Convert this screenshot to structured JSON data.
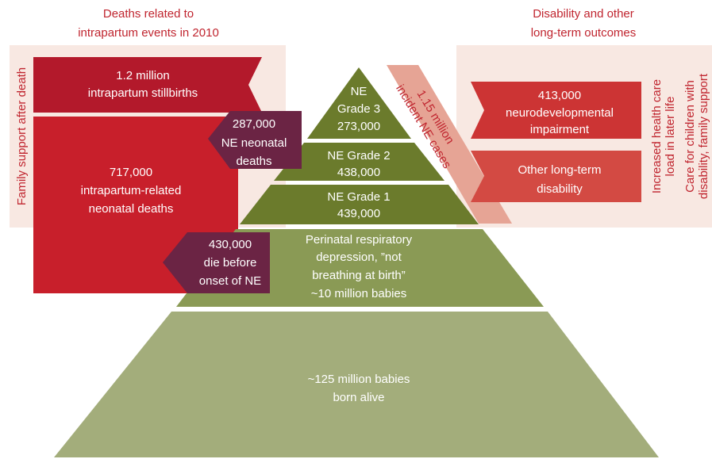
{
  "headings": {
    "deaths": [
      "Deaths related to",
      "intrapartum events in 2010"
    ],
    "outcomes": [
      "Disability and other",
      "long-term outcomes"
    ]
  },
  "side_labels": {
    "family_support": "Family support after death",
    "health_care": [
      "Increased health care",
      "load in later life"
    ],
    "care": [
      "Care for children with",
      "disability, family support"
    ]
  },
  "deaths": {
    "stillbirths": [
      "1.2 million",
      "intrapartum stillbirths"
    ],
    "neonatal": [
      "717,000",
      "intrapartum-related",
      "neonatal deaths"
    ],
    "ne_neonatal": [
      "287,000",
      "NE neonatal",
      "deaths"
    ],
    "before_ne": [
      "430,000",
      "die before",
      "onset of NE"
    ]
  },
  "pyramid": {
    "grade3": [
      "NE",
      "Grade 3",
      "273,000"
    ],
    "grade2": [
      "NE Grade 2",
      "438,000"
    ],
    "grade1": [
      "NE Grade 1",
      "439,000"
    ],
    "perinatal": [
      "Perinatal respiratory",
      "depression, ”not",
      "breathing at birth”",
      "~10 million babies"
    ],
    "born_alive": [
      "~125 million babies",
      "born alive"
    ]
  },
  "incident": [
    "1.15 million",
    "incident NE cases"
  ],
  "outcomes": {
    "impairment": [
      "413,000",
      "neurodevelopmental",
      "impairment"
    ],
    "other": [
      "Other long-term",
      "disability"
    ]
  }
}
